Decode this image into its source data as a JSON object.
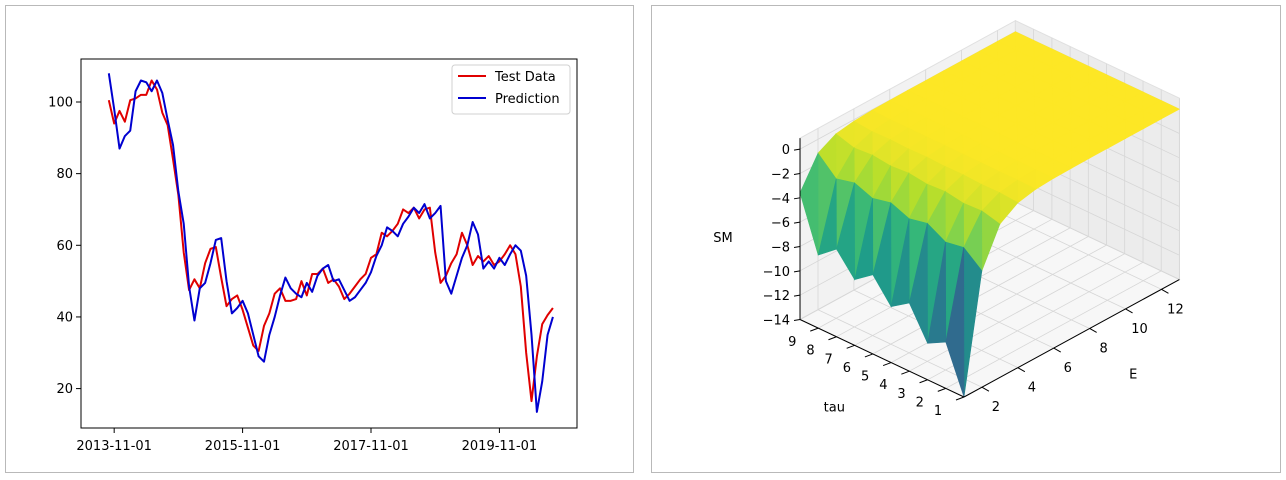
{
  "chart_data": [
    {
      "type": "line",
      "title": "",
      "xlabel": "",
      "ylabel": "",
      "x_tick_labels": [
        "2013-11-01",
        "2015-11-01",
        "2017-11-01",
        "2019-11-01"
      ],
      "x_tick_positions": [
        1,
        25,
        49,
        73
      ],
      "yticks": [
        20,
        40,
        60,
        80,
        100
      ],
      "xlim": [
        -5.2,
        87.5
      ],
      "ylim": [
        9,
        112
      ],
      "grid": false,
      "legend": "top-right",
      "series": [
        {
          "name": "Test Data",
          "color": "#e00000",
          "values": [
            100.5,
            94,
            97.5,
            94.5,
            100.5,
            101,
            102,
            102,
            106,
            103.5,
            97,
            93.5,
            84,
            74,
            58,
            47.5,
            50.5,
            48,
            55,
            59,
            59.5,
            51,
            43,
            45,
            46,
            42,
            37,
            32,
            30.5,
            37.5,
            41,
            46.5,
            48,
            44.5,
            44.5,
            45,
            50,
            46,
            52,
            52,
            53.5,
            49.5,
            50.5,
            48.5,
            45,
            46.5,
            48.5,
            50.5,
            52,
            56.5,
            57.5,
            63.5,
            62.5,
            64,
            66,
            70,
            69,
            70.5,
            67.5,
            70,
            70.5,
            58,
            49.5,
            51.5,
            55,
            57.5,
            63.5,
            60,
            54.5,
            57,
            55.5,
            57,
            54.5,
            55.5,
            57.5,
            60,
            57.5,
            48.5,
            30,
            16.5,
            29,
            38,
            40.5,
            42.5
          ]
        },
        {
          "name": "Prediction",
          "color": "#0000d0",
          "values": [
            108,
            98,
            87,
            90.5,
            92,
            103,
            106,
            105.5,
            103,
            106,
            102.5,
            95,
            88,
            75,
            66,
            48.5,
            39,
            48,
            49.5,
            55,
            61.5,
            62,
            50,
            41,
            42.5,
            44.5,
            41,
            35,
            29,
            27.5,
            35,
            40,
            46,
            51,
            48,
            46.5,
            45.5,
            49.5,
            47,
            51.5,
            53.5,
            54.5,
            50,
            50.5,
            47.5,
            44.5,
            45.5,
            47.5,
            49.5,
            52.5,
            57,
            60,
            65,
            64,
            62.5,
            66,
            68,
            70.5,
            69,
            71.5,
            67.5,
            69,
            71,
            50,
            46.5,
            51.5,
            56.5,
            60,
            66.5,
            63,
            53.5,
            55.5,
            53.5,
            56.5,
            54.5,
            57.5,
            60,
            58.5,
            51.5,
            35,
            13.5,
            22,
            35,
            40
          ]
        }
      ]
    },
    {
      "type": "surface3d",
      "title": "",
      "xlabel": "E",
      "ylabel": "tau",
      "zlabel": "SM",
      "colormap": "viridis",
      "x_ticks": [
        2,
        4,
        6,
        8,
        10,
        12
      ],
      "y_ticks": [
        1,
        2,
        3,
        4,
        5,
        6,
        7,
        8,
        9
      ],
      "z_ticks": [
        0,
        -2,
        -4,
        -6,
        -8,
        -10,
        -12,
        -14
      ],
      "z_tick_labels": [
        "0",
        "−2",
        "−4",
        "−6",
        "−8",
        "−10",
        "−12",
        "−14"
      ],
      "E_values": [
        1,
        2,
        3,
        4,
        5,
        6,
        7,
        8,
        9,
        10,
        11,
        12,
        13
      ],
      "tau_values": [
        1,
        2,
        3,
        4,
        5,
        6,
        7,
        8,
        9,
        10
      ],
      "SM_edge_E1": [
        -14,
        -10.2,
        -11,
        -8.4,
        -9.4,
        -7.5,
        -8.6,
        -6.8,
        -8.0,
        -3.6
      ],
      "grid": true
    }
  ]
}
